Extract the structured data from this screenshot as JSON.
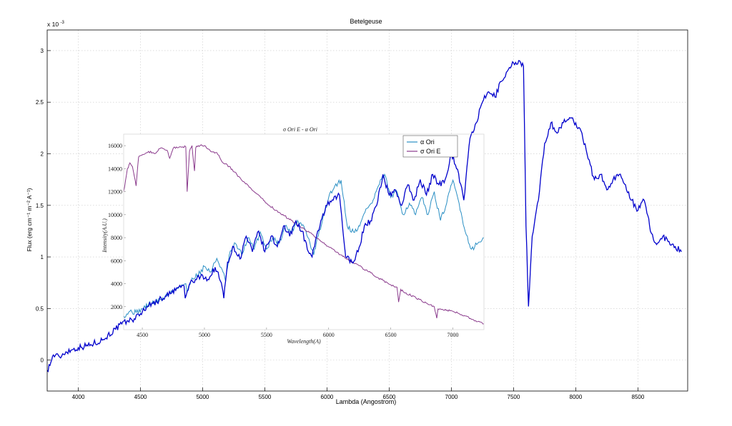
{
  "chart_data": [
    {
      "type": "line",
      "title": "Betelgeuse",
      "xlabel": "Lambda (Angostrom)",
      "ylabel": "Flux (erg cm⁻¹ m⁻² A⁻¹)",
      "y_multiplier": "x 10",
      "y_multiplier_exp": "-3",
      "xlim": [
        3750,
        8900
      ],
      "ylim": [
        -0.3,
        3.2
      ],
      "xticks": [
        4000,
        4500,
        5000,
        5500,
        6000,
        6500,
        7000,
        7500,
        8000,
        8500
      ],
      "xtick_labels": [
        "4000",
        "4500",
        "5000",
        "5500",
        "6000",
        "6500",
        "7000",
        "7500",
        "8000",
        "8500"
      ],
      "yticks": [
        0,
        0.5,
        1,
        1.5,
        2,
        2.5,
        3
      ],
      "ytick_labels": [
        "0",
        "0.5",
        "1",
        "1.5",
        "2",
        "2.5",
        "3"
      ],
      "grid": true,
      "color": "#0000cc",
      "series": [
        {
          "x": [
            3750,
            3780,
            3800,
            3850,
            3900,
            3950,
            4000,
            4100,
            4200,
            4300,
            4350,
            4400,
            4450,
            4500,
            4550,
            4600,
            4650,
            4700,
            4750,
            4800,
            4850,
            4860,
            4900,
            4950,
            5000,
            5050,
            5100,
            5150,
            5170,
            5200,
            5250,
            5300,
            5350,
            5400,
            5450,
            5500,
            5550,
            5600,
            5650,
            5700,
            5750,
            5800,
            5850,
            5880,
            5900,
            5950,
            6000,
            6050,
            6100,
            6150,
            6200,
            6250,
            6300,
            6350,
            6400,
            6450,
            6500,
            6550,
            6600,
            6650,
            6700,
            6750,
            6800,
            6850,
            6900,
            6950,
            7000,
            7050,
            7100,
            7150,
            7200,
            7250,
            7300,
            7350,
            7400,
            7450,
            7500,
            7550,
            7580,
            7600,
            7620,
            7650,
            7700,
            7750,
            7800,
            7850,
            7900,
            7950,
            8000,
            8050,
            8100,
            8150,
            8200,
            8250,
            8300,
            8350,
            8400,
            8450,
            8500,
            8550,
            8580,
            8600,
            8650,
            8700,
            8750,
            8800,
            8850
          ],
          "y": [
            -0.1,
            -0.02,
            0.05,
            0.03,
            0.08,
            0.1,
            0.12,
            0.15,
            0.2,
            0.3,
            0.35,
            0.38,
            0.4,
            0.45,
            0.52,
            0.55,
            0.58,
            0.62,
            0.65,
            0.7,
            0.72,
            0.6,
            0.75,
            0.78,
            0.82,
            0.78,
            0.9,
            0.75,
            0.6,
            0.95,
            1.1,
            0.98,
            1.2,
            1.05,
            1.25,
            1.05,
            1.2,
            1.1,
            1.3,
            1.2,
            1.35,
            1.25,
            1.05,
            1.0,
            1.1,
            1.35,
            1.5,
            1.55,
            1.6,
            1.0,
            0.95,
            1.05,
            1.3,
            1.35,
            1.5,
            1.8,
            1.6,
            1.65,
            1.5,
            1.7,
            1.55,
            1.75,
            1.6,
            1.8,
            1.7,
            1.75,
            2.0,
            1.85,
            1.55,
            2.15,
            2.3,
            2.5,
            2.6,
            2.55,
            2.7,
            2.8,
            2.88,
            2.9,
            2.85,
            1.3,
            0.52,
            1.2,
            1.55,
            2.1,
            2.3,
            2.2,
            2.3,
            2.35,
            2.3,
            2.2,
            1.95,
            1.75,
            1.8,
            1.65,
            1.75,
            1.8,
            1.7,
            1.55,
            1.45,
            1.55,
            1.4,
            1.25,
            1.12,
            1.2,
            1.15,
            1.1,
            1.05
          ]
        }
      ]
    },
    {
      "type": "line",
      "title": "σ Ori E - α Ori",
      "xlabel": "Wavelength(A)",
      "ylabel": "Intensity(A.U.)",
      "xlim": [
        4350,
        7250
      ],
      "ylim": [
        0,
        17000
      ],
      "xticks": [
        4500,
        5000,
        5500,
        6000,
        6500,
        7000
      ],
      "xtick_labels": [
        "4500",
        "5000",
        "5500",
        "6000",
        "6500",
        "7000"
      ],
      "yticks": [
        2000,
        4000,
        6000,
        8000,
        10000,
        12000,
        14000,
        16000
      ],
      "ytick_labels": [
        "2000",
        "4000",
        "6000",
        "8000",
        "10000",
        "12000",
        "14000",
        "16000"
      ],
      "legend_position": "top-right",
      "series": [
        {
          "name": "α Ori",
          "color": "#2a8fc4",
          "x": [
            4350,
            4400,
            4450,
            4500,
            4550,
            4600,
            4650,
            4700,
            4750,
            4800,
            4850,
            4860,
            4900,
            4950,
            5000,
            5050,
            5100,
            5150,
            5170,
            5200,
            5250,
            5300,
            5350,
            5400,
            5450,
            5500,
            5550,
            5600,
            5650,
            5700,
            5750,
            5800,
            5850,
            5880,
            5900,
            5950,
            6000,
            6050,
            6100,
            6150,
            6200,
            6250,
            6300,
            6350,
            6400,
            6450,
            6500,
            6550,
            6600,
            6650,
            6700,
            6750,
            6800,
            6850,
            6900,
            6950,
            7000,
            7050,
            7100,
            7150,
            7200,
            7250
          ],
          "y": [
            1200,
            1600,
            1500,
            1800,
            2200,
            2400,
            2600,
            3000,
            3400,
            3800,
            4000,
            3200,
            4500,
            4800,
            5500,
            5000,
            6200,
            5000,
            4200,
            6500,
            7500,
            6500,
            8000,
            7000,
            8500,
            7000,
            8000,
            7500,
            9000,
            8500,
            9500,
            9000,
            7500,
            6500,
            7500,
            9500,
            11500,
            12500,
            13000,
            9000,
            8500,
            9000,
            10500,
            11000,
            12500,
            13500,
            11500,
            12000,
            10000,
            11000,
            10000,
            11500,
            10000,
            12000,
            9500,
            11000,
            13000,
            11000,
            8500,
            7000,
            7500,
            8000
          ]
        },
        {
          "name": "σ Ori E",
          "color": "#8a3a8c",
          "x": [
            4350,
            4380,
            4400,
            4420,
            4450,
            4470,
            4500,
            4550,
            4600,
            4650,
            4700,
            4720,
            4750,
            4800,
            4850,
            4861,
            4880,
            4900,
            4920,
            4930,
            4950,
            5000,
            5050,
            5100,
            5150,
            5200,
            5300,
            5400,
            5500,
            5600,
            5700,
            5800,
            5900,
            6000,
            6100,
            6200,
            6300,
            6400,
            6500,
            6550,
            6563,
            6580,
            6600,
            6700,
            6800,
            6850,
            6870,
            6880,
            6900,
            7000,
            7100,
            7150,
            7200,
            7250
          ],
          "y": [
            12000,
            14000,
            14500,
            14200,
            12500,
            15000,
            15200,
            15500,
            15300,
            15800,
            15600,
            14900,
            15800,
            15900,
            15900,
            12000,
            15500,
            16000,
            13800,
            15800,
            16000,
            16000,
            15500,
            15400,
            14500,
            14200,
            13000,
            12000,
            11000,
            10200,
            9500,
            8800,
            8000,
            7200,
            6500,
            5800,
            5200,
            4500,
            3900,
            3700,
            2400,
            3500,
            3300,
            2800,
            2200,
            2000,
            1000,
            1800,
            1800,
            1600,
            1200,
            900,
            700,
            500
          ]
        }
      ]
    }
  ]
}
